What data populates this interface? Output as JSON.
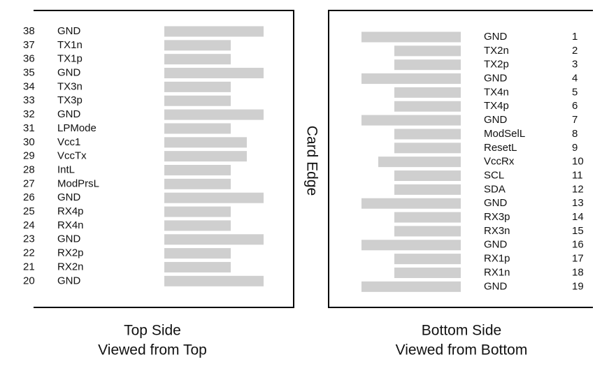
{
  "top_side": {
    "title": "Top Side",
    "subtitle": "Viewed from Top",
    "pins": [
      {
        "number": 38,
        "name": "GND",
        "pad": "long"
      },
      {
        "number": 37,
        "name": "TX1n",
        "pad": "short"
      },
      {
        "number": 36,
        "name": "TX1p",
        "pad": "short"
      },
      {
        "number": 35,
        "name": "GND",
        "pad": "long"
      },
      {
        "number": 34,
        "name": "TX3n",
        "pad": "short"
      },
      {
        "number": 33,
        "name": "TX3p",
        "pad": "short"
      },
      {
        "number": 32,
        "name": "GND",
        "pad": "long"
      },
      {
        "number": 31,
        "name": "LPMode",
        "pad": "short"
      },
      {
        "number": 30,
        "name": "Vcc1",
        "pad": "medium"
      },
      {
        "number": 29,
        "name": "VccTx",
        "pad": "medium"
      },
      {
        "number": 28,
        "name": "IntL",
        "pad": "short"
      },
      {
        "number": 27,
        "name": "ModPrsL",
        "pad": "short"
      },
      {
        "number": 26,
        "name": "GND",
        "pad": "long"
      },
      {
        "number": 25,
        "name": "RX4p",
        "pad": "short"
      },
      {
        "number": 24,
        "name": "RX4n",
        "pad": "short"
      },
      {
        "number": 23,
        "name": "GND",
        "pad": "long"
      },
      {
        "number": 22,
        "name": "RX2p",
        "pad": "short"
      },
      {
        "number": 21,
        "name": "RX2n",
        "pad": "short"
      },
      {
        "number": 20,
        "name": "GND",
        "pad": "long"
      }
    ]
  },
  "bottom_side": {
    "title": "Bottom Side",
    "subtitle": "Viewed from Bottom",
    "pins": [
      {
        "number": 1,
        "name": "GND",
        "pad": "long"
      },
      {
        "number": 2,
        "name": "TX2n",
        "pad": "short"
      },
      {
        "number": 3,
        "name": "TX2p",
        "pad": "short"
      },
      {
        "number": 4,
        "name": "GND",
        "pad": "long"
      },
      {
        "number": 5,
        "name": "TX4n",
        "pad": "short"
      },
      {
        "number": 6,
        "name": "TX4p",
        "pad": "short"
      },
      {
        "number": 7,
        "name": "GND",
        "pad": "long"
      },
      {
        "number": 8,
        "name": "ModSelL",
        "pad": "short"
      },
      {
        "number": 9,
        "name": "ResetL",
        "pad": "short"
      },
      {
        "number": 10,
        "name": "VccRx",
        "pad": "medium"
      },
      {
        "number": 11,
        "name": "SCL",
        "pad": "short"
      },
      {
        "number": 12,
        "name": "SDA",
        "pad": "short"
      },
      {
        "number": 13,
        "name": "GND",
        "pad": "long"
      },
      {
        "number": 14,
        "name": "RX3p",
        "pad": "short"
      },
      {
        "number": 15,
        "name": "RX3n",
        "pad": "short"
      },
      {
        "number": 16,
        "name": "GND",
        "pad": "long"
      },
      {
        "number": 17,
        "name": "RX1p",
        "pad": "short"
      },
      {
        "number": 18,
        "name": "RX1n",
        "pad": "short"
      },
      {
        "number": 19,
        "name": "GND",
        "pad": "long"
      }
    ]
  },
  "card_edge_label": "Card Edge"
}
